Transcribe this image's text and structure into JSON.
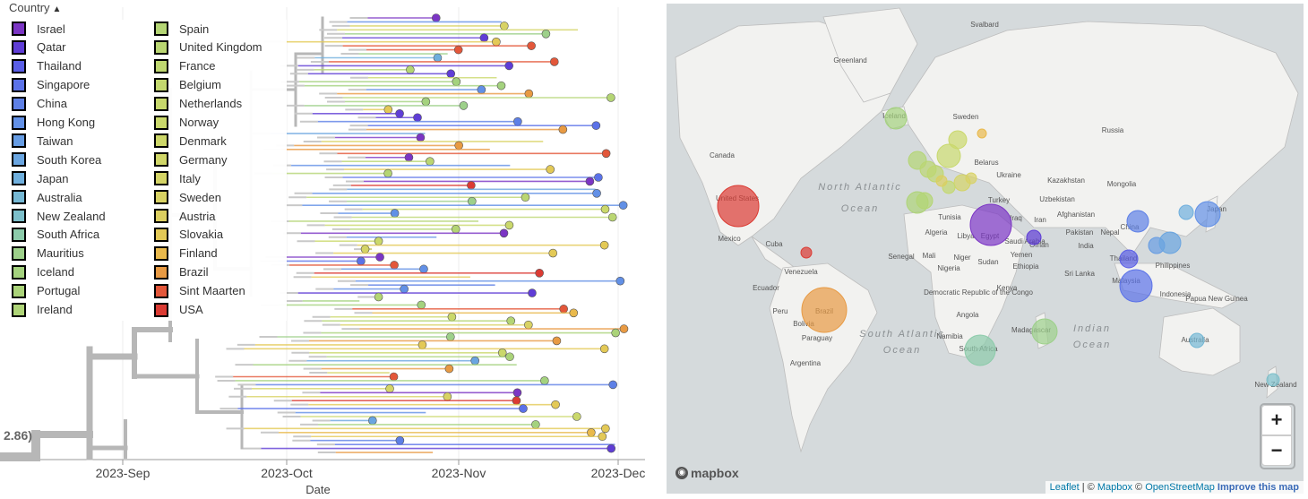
{
  "legend": {
    "title": "Country",
    "items": [
      {
        "label": "Israel",
        "color": "#7b35c4"
      },
      {
        "label": "Qatar",
        "color": "#5f3dd6"
      },
      {
        "label": "Thailand",
        "color": "#5a5ee6"
      },
      {
        "label": "Singapore",
        "color": "#5b72e8"
      },
      {
        "label": "China",
        "color": "#5e80e6"
      },
      {
        "label": "Hong Kong",
        "color": "#6290e6"
      },
      {
        "label": "Taiwan",
        "color": "#669ce3"
      },
      {
        "label": "South Korea",
        "color": "#6aa5e0"
      },
      {
        "label": "Japan",
        "color": "#6fafdd"
      },
      {
        "label": "Australia",
        "color": "#75b8d4"
      },
      {
        "label": "New Zealand",
        "color": "#7cbfca"
      },
      {
        "label": "South Africa",
        "color": "#8ccbaa"
      },
      {
        "label": "Mauritius",
        "color": "#9dd08a"
      },
      {
        "label": "Iceland",
        "color": "#a4d27e"
      },
      {
        "label": "Portugal",
        "color": "#aad379"
      },
      {
        "label": "Ireland",
        "color": "#aed477"
      },
      {
        "label": "Spain",
        "color": "#b4d574"
      },
      {
        "label": "United Kingdom",
        "color": "#bad672"
      },
      {
        "label": "France",
        "color": "#bfd770"
      },
      {
        "label": "Belgium",
        "color": "#c3d86e"
      },
      {
        "label": "Netherlands",
        "color": "#c7d86c"
      },
      {
        "label": "Norway",
        "color": "#cad86b"
      },
      {
        "label": "Denmark",
        "color": "#cdd769"
      },
      {
        "label": "Germany",
        "color": "#d0d668"
      },
      {
        "label": "Italy",
        "color": "#d4d466"
      },
      {
        "label": "Sweden",
        "color": "#d8d264"
      },
      {
        "label": "Austria",
        "color": "#dccf60"
      },
      {
        "label": "Slovakia",
        "color": "#e3c956"
      },
      {
        "label": "Finland",
        "color": "#e9b94c"
      },
      {
        "label": "Brazil",
        "color": "#e89a43"
      },
      {
        "label": "Sint Maarten",
        "color": "#e3573a"
      },
      {
        "label": "USA",
        "color": "#db3b33"
      }
    ]
  },
  "tree": {
    "x_axis_label": "Date",
    "x_ticks": [
      "2023-Sep",
      "2023-Oct",
      "2023-Nov",
      "2023-Dec"
    ],
    "root_label": "2.86)"
  },
  "map": {
    "country_labels": [
      "Svalbard",
      "Greenland",
      "Russia",
      "Canada",
      "United States",
      "Mexico",
      "Cuba",
      "Venezuela",
      "Ecuador",
      "Peru",
      "Brazil",
      "Bolivia",
      "Paraguay",
      "Argentina",
      "Iceland",
      "Sweden",
      "Belarus",
      "Ukraine",
      "Kazakhstan",
      "Uzbekistan",
      "Mongolia",
      "China",
      "Turkey",
      "Iran",
      "Iraq",
      "Saudi Arabia",
      "Egypt",
      "Libya",
      "Algeria",
      "Tunisia",
      "Mali",
      "Niger",
      "Nigeria",
      "Senegal",
      "Sudan",
      "Ethiopia",
      "Kenya",
      "Democratic Republic of the Congo",
      "Angola",
      "Namibia",
      "South Africa",
      "Madagascar",
      "Yemen",
      "Oman",
      "Pakistan",
      "India",
      "Nepal",
      "Sri Lanka",
      "Thailand",
      "Malaysia",
      "Indonesia",
      "Philippines",
      "Japan",
      "Papua New Guinea",
      "Australia",
      "New Zealand",
      "Afghanistan"
    ],
    "ocean_labels": [
      "North Atlantic Ocean",
      "South Atlantic Ocean",
      "Indian Ocean"
    ],
    "zoom_in": "+",
    "zoom_out": "−",
    "logo": "mapbox",
    "attribution": {
      "leaflet": "Leaflet",
      "sep": " | © ",
      "mapbox": "Mapbox",
      "copy": " © ",
      "osm": "OpenStreetMap",
      "improve": "Improve this map"
    }
  }
}
